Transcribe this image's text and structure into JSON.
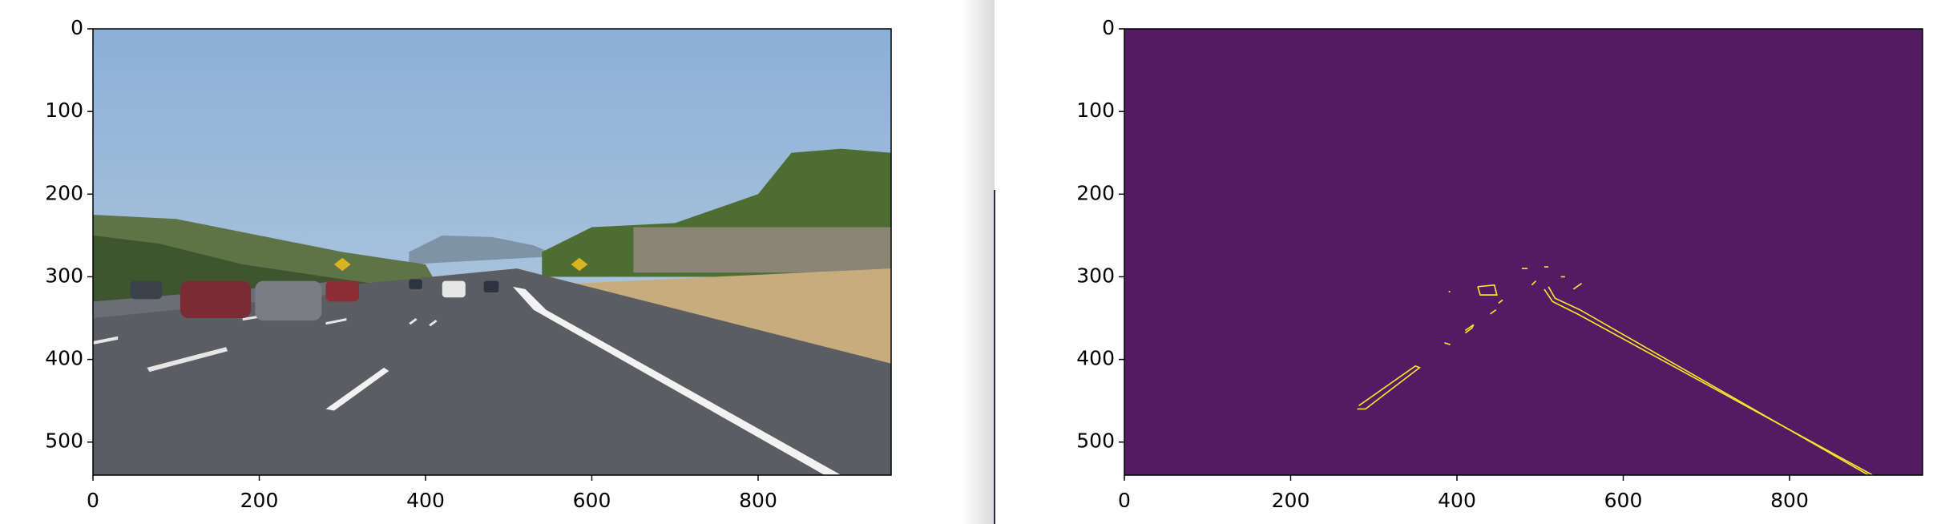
{
  "chart_data": [
    {
      "type": "image",
      "xlim": [
        0,
        960
      ],
      "ylim": [
        540,
        0
      ],
      "xticks": [
        0,
        200,
        400,
        600,
        800
      ],
      "yticks": [
        0,
        100,
        200,
        300,
        400,
        500
      ]
    },
    {
      "type": "image",
      "colormap_background": "#531b63",
      "edge_color": "#f4e62a",
      "xlim": [
        0,
        960
      ],
      "ylim": [
        540,
        0
      ],
      "xticks": [
        0,
        200,
        400,
        600,
        800
      ],
      "yticks": [
        0,
        100,
        200,
        300,
        400,
        500
      ]
    }
  ]
}
